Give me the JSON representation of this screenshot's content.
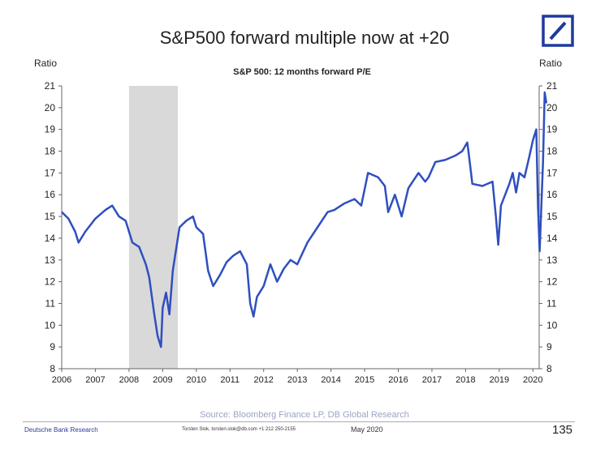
{
  "header": {
    "title": "S&P500 forward multiple now at +20"
  },
  "footer": {
    "source": "Source: Bloomberg Finance LP, DB Global Research",
    "brand": "Deutsche Bank Research",
    "contact": "Torsten Slok, torsten.slok@db.com +1 212 250-2155",
    "date": "May 2020",
    "page": "135"
  },
  "colors": {
    "line": "#2f4fbf",
    "recession": "#d9d9d9",
    "logo": "#1f3a9e"
  },
  "chart_data": {
    "type": "line",
    "title": "S&P 500: 12 months forward P/E",
    "ylabel_left": "Ratio",
    "ylabel_right": "Ratio",
    "xlim": [
      2006,
      2020.5
    ],
    "ylim": [
      8,
      21
    ],
    "xticks": [
      "2006",
      "2007",
      "2008",
      "2009",
      "2010",
      "2011",
      "2012",
      "2013",
      "2014",
      "2015",
      "2016",
      "2017",
      "2018",
      "2019",
      "2020"
    ],
    "yticks": [
      "8",
      "9",
      "10",
      "11",
      "12",
      "13",
      "14",
      "15",
      "16",
      "17",
      "18",
      "19",
      "20",
      "21"
    ],
    "grid": false,
    "shaded_region": [
      2008.0,
      2009.45
    ],
    "x": [
      2006.0,
      2006.2,
      2006.4,
      2006.5,
      2006.7,
      2007.0,
      2007.3,
      2007.5,
      2007.7,
      2007.9,
      2008.1,
      2008.3,
      2008.5,
      2008.6,
      2008.75,
      2008.85,
      2008.95,
      2009.0,
      2009.1,
      2009.2,
      2009.3,
      2009.4,
      2009.5,
      2009.7,
      2009.9,
      2010.0,
      2010.2,
      2010.35,
      2010.5,
      2010.7,
      2010.9,
      2011.1,
      2011.3,
      2011.5,
      2011.6,
      2011.7,
      2011.8,
      2012.0,
      2012.2,
      2012.4,
      2012.6,
      2012.8,
      2013.0,
      2013.3,
      2013.6,
      2013.9,
      2014.1,
      2014.4,
      2014.7,
      2014.9,
      2015.1,
      2015.4,
      2015.6,
      2015.7,
      2015.9,
      2016.1,
      2016.3,
      2016.6,
      2016.8,
      2016.9,
      2017.1,
      2017.4,
      2017.7,
      2017.9,
      2018.05,
      2018.1,
      2018.2,
      2018.5,
      2018.8,
      2018.9,
      2018.97,
      2019.05,
      2019.3,
      2019.4,
      2019.5,
      2019.6,
      2019.75,
      2019.9,
      2020.0,
      2020.1,
      2020.15,
      2020.2,
      2020.3,
      2020.35,
      2020.4
    ],
    "y": [
      15.2,
      14.9,
      14.3,
      13.8,
      14.3,
      14.9,
      15.3,
      15.5,
      15.0,
      14.8,
      13.8,
      13.6,
      12.8,
      12.2,
      10.5,
      9.5,
      9.0,
      10.8,
      11.5,
      10.5,
      12.5,
      13.5,
      14.5,
      14.8,
      15.0,
      14.5,
      14.2,
      12.5,
      11.8,
      12.3,
      12.9,
      13.2,
      13.4,
      12.8,
      11.0,
      10.4,
      11.3,
      11.8,
      12.8,
      12.0,
      12.6,
      13.0,
      12.8,
      13.8,
      14.5,
      15.2,
      15.3,
      15.6,
      15.8,
      15.5,
      17.0,
      16.8,
      16.4,
      15.2,
      16.0,
      15.0,
      16.3,
      17.0,
      16.6,
      16.8,
      17.5,
      17.6,
      17.8,
      18.0,
      18.4,
      17.8,
      16.5,
      16.4,
      16.6,
      15.0,
      13.7,
      15.5,
      16.5,
      17.0,
      16.1,
      17.0,
      16.8,
      17.8,
      18.5,
      19.0,
      15.5,
      13.4,
      17.5,
      20.7,
      20.2
    ]
  }
}
